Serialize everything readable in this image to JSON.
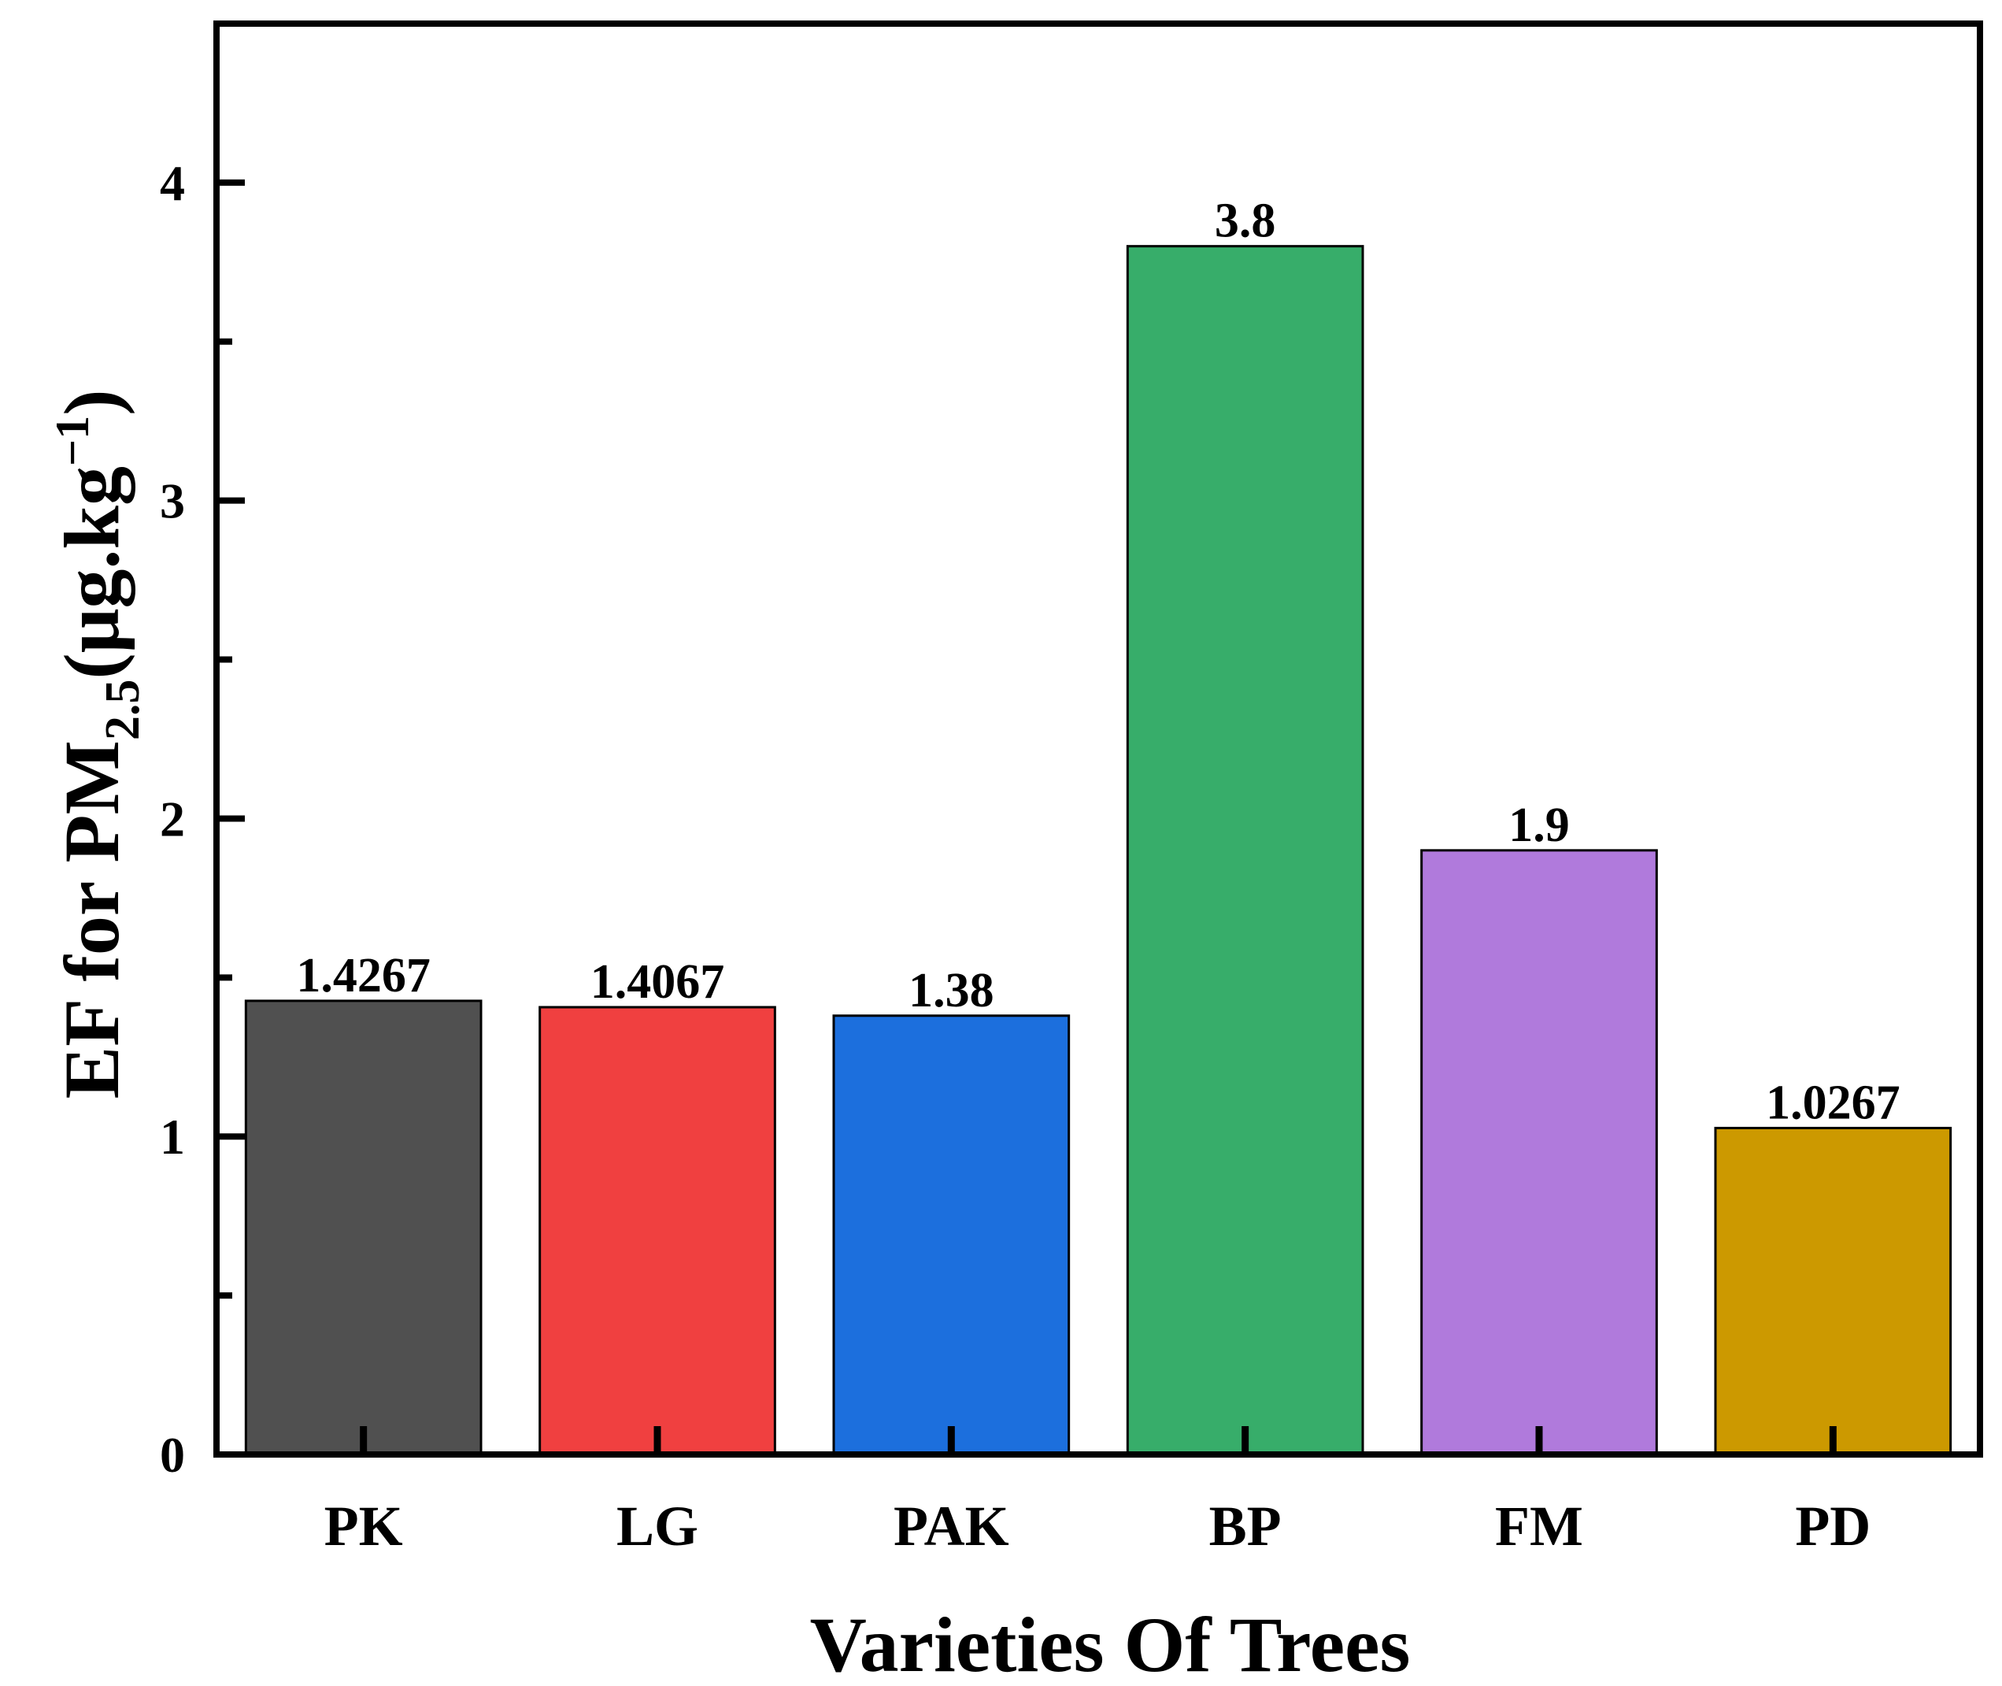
{
  "chart_data": {
    "type": "bar",
    "categories": [
      "PK",
      "LG",
      "PAK",
      "BP",
      "FM",
      "PD"
    ],
    "values": [
      1.4267,
      1.4067,
      1.38,
      3.8,
      1.9,
      1.0267
    ],
    "value_labels": [
      "1.4267",
      "1.4067",
      "1.38",
      "3.8",
      "1.9",
      "1.0267"
    ],
    "colors": [
      "#505050",
      "#f04040",
      "#1c6fdd",
      "#37ad6a",
      "#b07adc",
      "#cc9900"
    ],
    "xlabel": "Varieties Of Trees",
    "ylabel": {
      "main": "EF for PM",
      "subscript": "2.5",
      "unit_open": "(μg.kg",
      "superscript": "−1",
      "unit_close": ")"
    },
    "ylim": [
      0,
      4.5
    ],
    "yticks": [
      0,
      1,
      2,
      3,
      4
    ],
    "ytick_labels": [
      "0",
      "1",
      "2",
      "3",
      "4"
    ],
    "yminor_ticks": [
      0.5,
      1.5,
      2.5,
      3.5
    ],
    "grid": false,
    "legend": "none"
  }
}
